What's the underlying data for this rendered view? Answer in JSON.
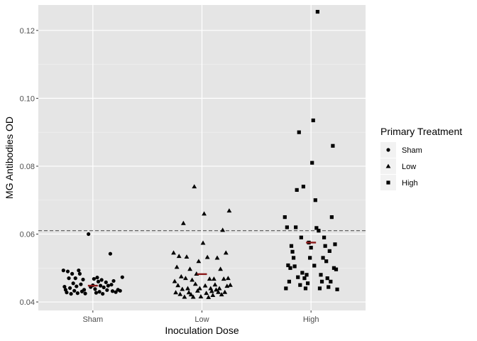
{
  "chart_data": {
    "type": "scatter",
    "xlabel": "Inoculation Dose",
    "ylabel": "MG Antibodies OD",
    "categories": [
      "Sham",
      "Low",
      "High"
    ],
    "ylim": [
      0.0375,
      0.1275
    ],
    "yticks": [
      0.04,
      0.06,
      0.08,
      0.1,
      0.12
    ],
    "ytick_labels": [
      "0.04",
      "0.06",
      "0.08",
      "0.10",
      "0.12"
    ],
    "grid": true,
    "reference_line": {
      "y": 0.061,
      "style": "dashed"
    },
    "legend": {
      "title": "Primary Treatment",
      "placement": "right",
      "entries": [
        {
          "label": "Sham",
          "shape": "circle"
        },
        {
          "label": "Low",
          "shape": "triangle"
        },
        {
          "label": "High",
          "shape": "square"
        }
      ]
    },
    "series": [
      {
        "name": "Sham",
        "shape": "circle",
        "category": "Sham",
        "mean": 0.0448,
        "points": [
          [
            -0.27,
            0.0493
          ],
          [
            -0.26,
            0.0445
          ],
          [
            -0.25,
            0.0436
          ],
          [
            -0.24,
            0.0428
          ],
          [
            -0.23,
            0.049
          ],
          [
            -0.22,
            0.047
          ],
          [
            -0.21,
            0.0441
          ],
          [
            -0.2,
            0.0424
          ],
          [
            -0.19,
            0.0483
          ],
          [
            -0.18,
            0.0455
          ],
          [
            -0.17,
            0.0433
          ],
          [
            -0.16,
            0.047
          ],
          [
            -0.15,
            0.0446
          ],
          [
            -0.14,
            0.0426
          ],
          [
            -0.13,
            0.0493
          ],
          [
            -0.12,
            0.0483
          ],
          [
            -0.11,
            0.0452
          ],
          [
            -0.1,
            0.0431
          ],
          [
            -0.09,
            0.0466
          ],
          [
            -0.08,
            0.0436
          ],
          [
            -0.07,
            0.0425
          ],
          [
            -0.04,
            0.06
          ],
          [
            -0.02,
            0.0444
          ],
          [
            0.0,
            0.0449
          ],
          [
            0.01,
            0.0468
          ],
          [
            0.02,
            0.0438
          ],
          [
            0.03,
            0.0427
          ],
          [
            0.04,
            0.0472
          ],
          [
            0.05,
            0.046
          ],
          [
            0.06,
            0.043
          ],
          [
            0.07,
            0.0448
          ],
          [
            0.08,
            0.0465
          ],
          [
            0.09,
            0.0424
          ],
          [
            0.1,
            0.0443
          ],
          [
            0.12,
            0.0458
          ],
          [
            0.13,
            0.0435
          ],
          [
            0.14,
            0.0448
          ],
          [
            0.16,
            0.0542
          ],
          [
            0.17,
            0.0451
          ],
          [
            0.18,
            0.0432
          ],
          [
            0.19,
            0.0462
          ],
          [
            0.21,
            0.0429
          ],
          [
            0.23,
            0.0436
          ],
          [
            0.25,
            0.0433
          ],
          [
            0.27,
            0.0473
          ]
        ]
      },
      {
        "name": "Low",
        "shape": "triangle",
        "category": "Low",
        "mean": 0.0482,
        "points": [
          [
            -0.26,
            0.0545
          ],
          [
            -0.25,
            0.0461
          ],
          [
            -0.24,
            0.0428
          ],
          [
            -0.23,
            0.0503
          ],
          [
            -0.22,
            0.0449
          ],
          [
            -0.21,
            0.0535
          ],
          [
            -0.2,
            0.0423
          ],
          [
            -0.19,
            0.0475
          ],
          [
            -0.18,
            0.0438
          ],
          [
            -0.17,
            0.0632
          ],
          [
            -0.16,
            0.0415
          ],
          [
            -0.15,
            0.047
          ],
          [
            -0.14,
            0.0533
          ],
          [
            -0.13,
            0.044
          ],
          [
            -0.12,
            0.0428
          ],
          [
            -0.11,
            0.0497
          ],
          [
            -0.1,
            0.0422
          ],
          [
            -0.09,
            0.0465
          ],
          [
            -0.08,
            0.0415
          ],
          [
            -0.07,
            0.074
          ],
          [
            -0.06,
            0.0453
          ],
          [
            -0.05,
            0.0483
          ],
          [
            -0.04,
            0.0433
          ],
          [
            -0.03,
            0.052
          ],
          [
            -0.02,
            0.044
          ],
          [
            -0.01,
            0.0416
          ],
          [
            0.01,
            0.0574
          ],
          [
            0.02,
            0.066
          ],
          [
            0.03,
            0.0448
          ],
          [
            0.04,
            0.0426
          ],
          [
            0.05,
            0.0532
          ],
          [
            0.06,
            0.0414
          ],
          [
            0.07,
            0.0468
          ],
          [
            0.08,
            0.044
          ],
          [
            0.09,
            0.0432
          ],
          [
            0.1,
            0.042
          ],
          [
            0.11,
            0.0468
          ],
          [
            0.12,
            0.0451
          ],
          [
            0.13,
            0.0436
          ],
          [
            0.14,
            0.053
          ],
          [
            0.15,
            0.0429
          ],
          [
            0.16,
            0.044
          ],
          [
            0.17,
            0.0497
          ],
          [
            0.18,
            0.0422
          ],
          [
            0.19,
            0.0612
          ],
          [
            0.2,
            0.0468
          ],
          [
            0.21,
            0.0429
          ],
          [
            0.22,
            0.0545
          ],
          [
            0.23,
            0.0447
          ],
          [
            0.24,
            0.047
          ],
          [
            0.25,
            0.0669
          ],
          [
            0.26,
            0.045
          ]
        ]
      },
      {
        "name": "High",
        "shape": "square",
        "category": "High",
        "mean": 0.0575,
        "points": [
          [
            -0.24,
            0.065
          ],
          [
            -0.23,
            0.044
          ],
          [
            -0.22,
            0.062
          ],
          [
            -0.21,
            0.0508
          ],
          [
            -0.2,
            0.046
          ],
          [
            -0.19,
            0.05
          ],
          [
            -0.18,
            0.0565
          ],
          [
            -0.17,
            0.0548
          ],
          [
            -0.16,
            0.053
          ],
          [
            -0.15,
            0.0505
          ],
          [
            -0.14,
            0.062
          ],
          [
            -0.13,
            0.073
          ],
          [
            -0.12,
            0.0473
          ],
          [
            -0.11,
            0.09
          ],
          [
            -0.1,
            0.045
          ],
          [
            -0.09,
            0.059
          ],
          [
            -0.08,
            0.0486
          ],
          [
            -0.07,
            0.074
          ],
          [
            -0.06,
            0.047
          ],
          [
            -0.05,
            0.044
          ],
          [
            -0.04,
            0.048
          ],
          [
            -0.03,
            0.0455
          ],
          [
            -0.02,
            0.0575
          ],
          [
            -0.01,
            0.053
          ],
          [
            0.0,
            0.056
          ],
          [
            0.01,
            0.081
          ],
          [
            0.02,
            0.0935
          ],
          [
            0.03,
            0.0507
          ],
          [
            0.04,
            0.07
          ],
          [
            0.05,
            0.0618
          ],
          [
            0.06,
            0.1255
          ],
          [
            0.07,
            0.061
          ],
          [
            0.08,
            0.044
          ],
          [
            0.09,
            0.048
          ],
          [
            0.1,
            0.046
          ],
          [
            0.11,
            0.053
          ],
          [
            0.12,
            0.059
          ],
          [
            0.13,
            0.0565
          ],
          [
            0.14,
            0.052
          ],
          [
            0.15,
            0.047
          ],
          [
            0.16,
            0.0444
          ],
          [
            0.17,
            0.055
          ],
          [
            0.18,
            0.046
          ],
          [
            0.19,
            0.065
          ],
          [
            0.2,
            0.086
          ],
          [
            0.21,
            0.05
          ],
          [
            0.22,
            0.057
          ],
          [
            0.23,
            0.0496
          ],
          [
            0.24,
            0.0437
          ]
        ]
      }
    ]
  }
}
